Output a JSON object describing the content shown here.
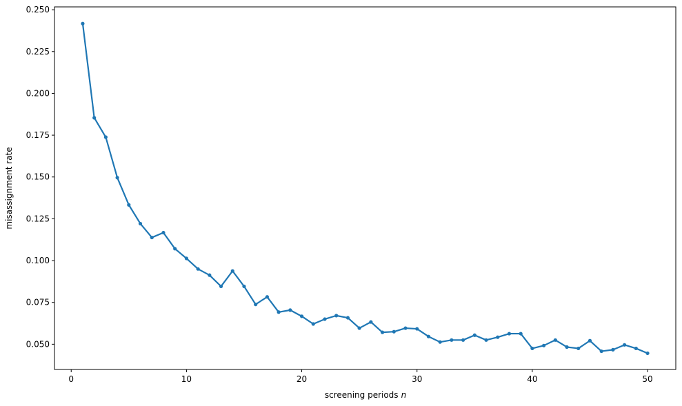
{
  "chart_data": {
    "type": "line",
    "x_label": "screening periods",
    "x_label_var": "n",
    "y_label": "misassignment rate",
    "x": [
      1,
      2,
      3,
      4,
      5,
      6,
      7,
      8,
      9,
      10,
      11,
      12,
      13,
      14,
      15,
      16,
      17,
      18,
      19,
      20,
      21,
      22,
      23,
      24,
      25,
      26,
      27,
      28,
      29,
      30,
      31,
      32,
      33,
      34,
      35,
      36,
      37,
      38,
      39,
      40,
      41,
      42,
      43,
      44,
      45,
      46,
      47,
      48,
      49,
      50
    ],
    "values": [
      0.2417,
      0.1854,
      0.1738,
      0.1496,
      0.1333,
      0.1221,
      0.1138,
      0.1167,
      0.1071,
      0.1013,
      0.095,
      0.0913,
      0.0846,
      0.0938,
      0.0846,
      0.0738,
      0.0783,
      0.0692,
      0.0704,
      0.0667,
      0.0621,
      0.065,
      0.0671,
      0.0658,
      0.0596,
      0.0633,
      0.0571,
      0.0575,
      0.0596,
      0.0592,
      0.0546,
      0.0513,
      0.0525,
      0.0525,
      0.0554,
      0.0525,
      0.0542,
      0.0563,
      0.0563,
      0.0475,
      0.0492,
      0.0525,
      0.0483,
      0.0475,
      0.0521,
      0.0458,
      0.0467,
      0.0496,
      0.0475,
      0.0446
    ],
    "color": "#1f77b4",
    "xlim": [
      -1.45,
      52.45
    ],
    "ylim": [
      0.0349,
      0.2517
    ],
    "xticks": [
      0,
      10,
      20,
      30,
      40,
      50
    ],
    "yticks": [
      {
        "value": 0.05,
        "label": "0.050"
      },
      {
        "value": 0.075,
        "label": "0.075"
      },
      {
        "value": 0.1,
        "label": "0.100"
      },
      {
        "value": 0.125,
        "label": "0.125"
      },
      {
        "value": 0.15,
        "label": "0.150"
      },
      {
        "value": 0.175,
        "label": "0.175"
      },
      {
        "value": 0.2,
        "label": "0.200"
      },
      {
        "value": 0.225,
        "label": "0.225"
      },
      {
        "value": 0.25,
        "label": "0.250"
      }
    ]
  }
}
